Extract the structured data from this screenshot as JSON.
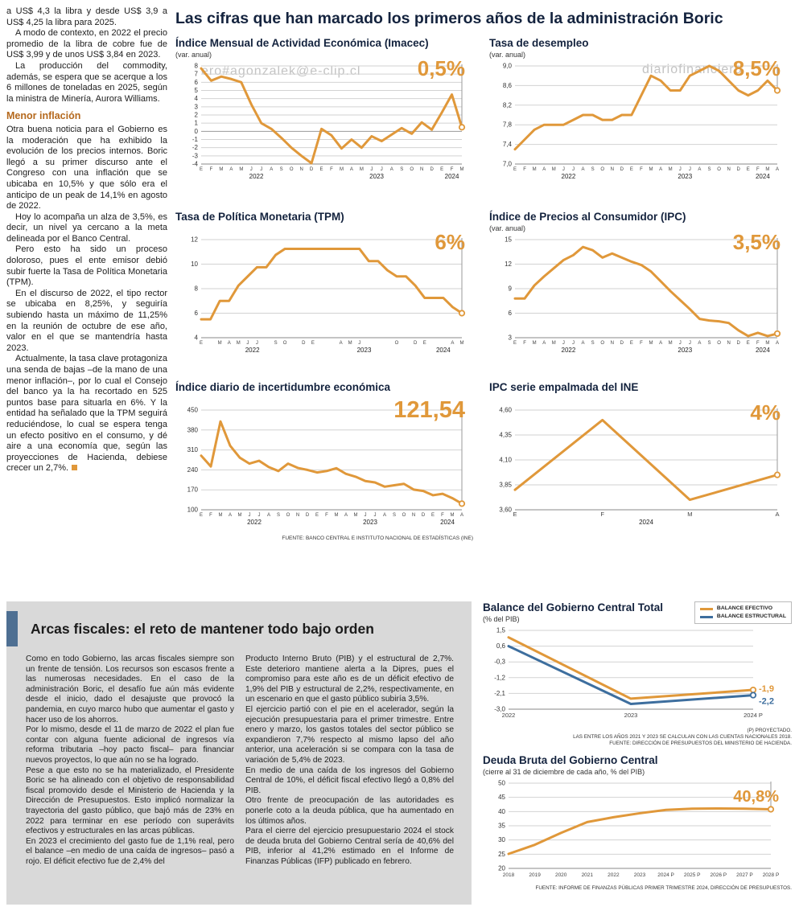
{
  "page": {
    "headline": "Las cifras que han marcado los primeros años de la administración Boric",
    "watermark_top": "ero#agonzalek@e-clip.cl",
    "watermark_brand": "diariofinanciero",
    "watermark_bottom": "ero#agonzalek@e-clip.cl"
  },
  "colors": {
    "accent_orange": "#e0983a",
    "accent_blue": "#3d6e9e",
    "accent_bar": "#4e6f92"
  },
  "left_article": {
    "paragraphs": [
      "a US$ 4,3 la libra y desde US$ 3,9 a US$ 4,25 la libra para 2025.",
      "A modo de contexto, en 2022 el precio promedio de la libra de cobre fue de US$ 3,99 y de unos US$ 3,84 en 2023.",
      "La producción del commodity, además, se espera que se acerque a los 6 millones de toneladas en 2025, según la ministra de Minería, Aurora Williams."
    ],
    "subhead": "Menor inflación",
    "paragraphs2": [
      "Otra buena noticia para el Gobierno es la moderación que ha exhibido la evolución de los precios internos. Boric llegó a su primer discurso ante el Congreso con una inflación que se ubicaba en 10,5% y que sólo era el anticipo de un peak de 14,1% en agosto de 2022.",
      "Hoy lo acompaña un alza de 3,5%, es decir, un nivel ya cercano a la meta delineada por el Banco Central.",
      "Pero esto ha sido un proceso doloroso, pues el ente emisor debió subir fuerte la Tasa de Política Monetaria (TPM).",
      "En el discurso de 2022, el tipo rector se ubicaba en 8,25%, y seguiría subiendo hasta un máximo de 11,25% en la reunión de octubre de ese año, valor en el que se mantendría hasta 2023.",
      "Actualmente, la tasa clave protagoniza una senda de bajas –de la mano de una menor inflación–, por lo cual el Consejo del banco ya la ha recortado en 525 puntos base para situarla en 6%. Y la entidad ha señalado que la TPM seguirá reduciéndose, lo cual se espera tenga un efecto positivo en el consumo, y dé aire a una economía que, según las proyecciones de Hacienda, debiese crecer un 2,7%."
    ]
  },
  "fiscal_section": {
    "title": "Arcas fiscales: el reto de mantener todo bajo orden",
    "col1": [
      "Como en todo Gobierno, las arcas fiscales siempre son un frente de tensión. Los recursos son escasos frente a las numerosas necesidades. En el caso de la administración Boric, el desafío fue aún más evidente desde el inicio, dado el desajuste que provocó la pandemia, en cuyo marco hubo que aumentar el gasto y hacer uso de los ahorros.",
      "Por lo mismo, desde el 11 de marzo de 2022 el plan fue contar con alguna fuente adicional de ingresos vía reforma tributaria –hoy pacto fiscal– para financiar nuevos proyectos, lo que aún no se ha logrado.",
      "Pese a que esto no se ha materializado, el Presidente Boric se ha alineado con el objetivo de responsabilidad fiscal promovido desde el Ministerio de Hacienda y la Dirección de Presupuestos. Esto implicó normalizar la trayectoria del gasto público, que bajó más de 23% en 2022 para terminar en ese período con superávits efectivos y estructurales en las arcas públicas.",
      "En 2023 el crecimiento del gasto fue de 1,1% real, pero el balance –en medio de una caída de ingresos– pasó a rojo. El déficit efectivo fue de 2,4% del"
    ],
    "col2": [
      "Producto Interno Bruto (PIB) y el estructural de 2,7%. Este deterioro mantiene alerta a la Dipres, pues el compromiso para este año es de un déficit efectivo de 1,9% del PIB y estructural de 2,2%, respectivamente, en un escenario en que el gasto público subiría 3,5%.",
      "El ejercicio partió con el pie en el acelerador, según la ejecución presupuestaria para el primer trimestre. Entre enero y marzo, los gastos totales del sector público se expandieron 7,7% respecto al mismo lapso del año anterior, una aceleración si se compara con la tasa de variación de 5,4% de 2023.",
      "En medio de una caída de los ingresos del Gobierno Central de 10%, el déficit fiscal efectivo llegó a 0,8% del PIB.",
      "Otro frente de preocupación de las autoridades es ponerle coto a la deuda pública, que ha aumentado en los últimos años.",
      "Para el cierre del ejercicio presupuestario 2024 el stock de deuda bruta del Gobierno Central sería de 40,6% del PIB, inferior al 41,2% estimado en el Informe de Finanzas Públicas (IFP) publicado en febrero."
    ]
  },
  "chart_data": [
    {
      "id": "imacec",
      "type": "line",
      "title": "Índice Mensual de Actividad Económica (Imacec)",
      "subtitle": "(var. anual)",
      "big_label": "0,5%",
      "ylim": [
        -4,
        8
      ],
      "yticks": [
        8,
        7,
        6,
        5,
        4,
        3,
        2,
        1,
        0,
        -1,
        -2,
        -3,
        -4
      ],
      "ytick_labels": [
        "8",
        "7",
        "6",
        "5",
        "4",
        "3",
        "2",
        "1",
        "0",
        "-1",
        "-2",
        "-3",
        "-4"
      ],
      "xticks": [
        "E",
        "F",
        "M",
        "A",
        "M",
        "J",
        "J",
        "A",
        "S",
        "O",
        "N",
        "D",
        "E",
        "F",
        "M",
        "A",
        "M",
        "J",
        "J",
        "A",
        "S",
        "O",
        "N",
        "D",
        "E",
        "F",
        "M"
      ],
      "year_labels": [
        {
          "label": "2022",
          "start": 0,
          "end": 11
        },
        {
          "label": "2023",
          "start": 12,
          "end": 23
        },
        {
          "label": "2024",
          "start": 24,
          "end": 26
        }
      ],
      "series": [
        {
          "name": "Imacec",
          "color": "#e0983a",
          "values": [
            7.7,
            6.2,
            6.7,
            6.4,
            6.0,
            3.3,
            1.0,
            0.3,
            -0.8,
            -2.0,
            -3.0,
            -3.9,
            0.3,
            -0.5,
            -2.1,
            -1.0,
            -2.0,
            -0.6,
            -1.2,
            -0.4,
            0.4,
            -0.3,
            1.1,
            0.2,
            2.3,
            4.5,
            0.5
          ]
        }
      ]
    },
    {
      "id": "desempleo",
      "type": "line",
      "title": "Tasa de desempleo",
      "subtitle": "(var. anual)",
      "big_label": "8,5%",
      "ylim": [
        7.0,
        9.0
      ],
      "yticks": [
        9.0,
        8.6,
        8.2,
        7.8,
        7.4,
        7.0
      ],
      "ytick_labels": [
        "9,0",
        "8,6",
        "8,2",
        "7,8",
        "7,4",
        "7,0"
      ],
      "xticks": [
        "E",
        "F",
        "M",
        "A",
        "M",
        "J",
        "J",
        "A",
        "S",
        "O",
        "N",
        "D",
        "E",
        "F",
        "M",
        "A",
        "M",
        "J",
        "J",
        "A",
        "S",
        "O",
        "N",
        "D",
        "E",
        "F",
        "M",
        "A"
      ],
      "year_labels": [
        {
          "label": "2022",
          "start": 0,
          "end": 11
        },
        {
          "label": "2023",
          "start": 12,
          "end": 23
        },
        {
          "label": "2024",
          "start": 24,
          "end": 27
        }
      ],
      "series": [
        {
          "name": "Tasa de desempleo",
          "color": "#e0983a",
          "values": [
            7.3,
            7.5,
            7.7,
            7.8,
            7.8,
            7.8,
            7.9,
            8.0,
            8.0,
            7.9,
            7.9,
            8.0,
            8.0,
            8.4,
            8.8,
            8.7,
            8.5,
            8.5,
            8.8,
            8.9,
            9.0,
            8.9,
            8.7,
            8.5,
            8.4,
            8.5,
            8.7,
            8.5
          ]
        }
      ]
    },
    {
      "id": "tpm",
      "type": "line",
      "title": "Tasa de Política Monetaria (TPM)",
      "subtitle": "",
      "big_label": "6%",
      "ylim": [
        4,
        12
      ],
      "yticks": [
        12,
        10,
        8,
        6,
        4
      ],
      "ytick_labels": [
        "12",
        "10",
        "8",
        "6",
        "4"
      ],
      "xticks": [
        "E",
        "",
        "M",
        "A",
        "M",
        "J",
        "J",
        "",
        "S",
        "O",
        "",
        "D",
        "E",
        "",
        "",
        "A",
        "M",
        "J",
        "",
        "",
        "",
        "O",
        "",
        "D",
        "E",
        "",
        "",
        "A",
        "M"
      ],
      "year_labels": [
        {
          "label": "2022",
          "start": 0,
          "end": 11
        },
        {
          "label": "2023",
          "start": 12,
          "end": 23
        },
        {
          "label": "2024",
          "start": 24,
          "end": 28
        }
      ],
      "series": [
        {
          "name": "TPM",
          "color": "#e0983a",
          "values": [
            5.5,
            5.5,
            7.0,
            7.0,
            8.25,
            9.0,
            9.75,
            9.75,
            10.75,
            11.25,
            11.25,
            11.25,
            11.25,
            11.25,
            11.25,
            11.25,
            11.25,
            11.25,
            10.25,
            10.25,
            9.5,
            9.0,
            9.0,
            8.25,
            7.25,
            7.25,
            7.25,
            6.5,
            6.0
          ]
        }
      ]
    },
    {
      "id": "ipc",
      "type": "line",
      "title": "Índice de Precios al Consumidor (IPC)",
      "subtitle": "(var. anual)",
      "big_label": "3,5%",
      "ylim": [
        3,
        15
      ],
      "yticks": [
        15,
        12,
        9,
        6,
        3
      ],
      "ytick_labels": [
        "15",
        "12",
        "9",
        "6",
        "3"
      ],
      "xticks": [
        "E",
        "F",
        "M",
        "A",
        "M",
        "J",
        "J",
        "A",
        "S",
        "O",
        "N",
        "D",
        "E",
        "F",
        "M",
        "A",
        "M",
        "J",
        "J",
        "A",
        "S",
        "O",
        "N",
        "D",
        "E",
        "F",
        "M",
        "A"
      ],
      "year_labels": [
        {
          "label": "2022",
          "start": 0,
          "end": 11
        },
        {
          "label": "2023",
          "start": 12,
          "end": 23
        },
        {
          "label": "2024",
          "start": 24,
          "end": 27
        }
      ],
      "series": [
        {
          "name": "IPC",
          "color": "#e0983a",
          "values": [
            7.8,
            7.8,
            9.4,
            10.5,
            11.5,
            12.5,
            13.1,
            14.1,
            13.7,
            12.8,
            13.3,
            12.8,
            12.3,
            11.9,
            11.1,
            9.9,
            8.7,
            7.6,
            6.5,
            5.3,
            5.1,
            5.0,
            4.8,
            3.9,
            3.2,
            3.6,
            3.2,
            3.5
          ]
        }
      ]
    },
    {
      "id": "incertidumbre",
      "type": "line",
      "title": "Índice diario de incertidumbre económica",
      "subtitle": "",
      "big_label": "121,54",
      "ylim": [
        100,
        450
      ],
      "yticks": [
        450,
        380,
        310,
        240,
        170,
        100
      ],
      "ytick_labels": [
        "450",
        "380",
        "310",
        "240",
        "170",
        "100"
      ],
      "xticks": [
        "E",
        "F",
        "M",
        "A",
        "M",
        "J",
        "J",
        "A",
        "S",
        "O",
        "N",
        "D",
        "E",
        "F",
        "M",
        "A",
        "M",
        "J",
        "J",
        "A",
        "S",
        "O",
        "N",
        "D",
        "E",
        "F",
        "M",
        "A"
      ],
      "year_labels": [
        {
          "label": "2022",
          "start": 0,
          "end": 11
        },
        {
          "label": "2023",
          "start": 12,
          "end": 23
        },
        {
          "label": "2024",
          "start": 24,
          "end": 27
        }
      ],
      "series": [
        {
          "name": "Incertidumbre económica",
          "color": "#e0983a",
          "values": [
            290,
            252,
            410,
            325,
            283,
            262,
            272,
            250,
            236,
            262,
            247,
            240,
            231,
            236,
            246,
            226,
            216,
            201,
            196,
            181,
            186,
            191,
            171,
            166,
            151,
            156,
            141,
            121.54
          ]
        }
      ],
      "source": "FUENTE: BANCO CENTRAL E INSTITUTO NACIONAL DE ESTADÍSTICAS (INE)"
    },
    {
      "id": "ipc_ine",
      "type": "line",
      "title": "IPC serie empalmada del INE",
      "subtitle": "",
      "big_label": "4%",
      "ylim": [
        3.6,
        4.6
      ],
      "yticks": [
        4.6,
        4.35,
        4.1,
        3.85,
        3.6
      ],
      "ytick_labels": [
        "4,60",
        "4,35",
        "4,10",
        "3,85",
        "3,60"
      ],
      "xticks": [
        "E",
        "F",
        "M",
        "A"
      ],
      "year_labels": [
        {
          "label": "2024",
          "start": 0,
          "end": 3
        }
      ],
      "series": [
        {
          "name": "IPC serie empalmada",
          "color": "#e0983a",
          "values": [
            3.8,
            4.5,
            3.7,
            3.95
          ]
        }
      ]
    },
    {
      "id": "balance",
      "type": "line",
      "title": "Balance del Gobierno Central Total",
      "subtitle": "(% del PIB)",
      "ylim": [
        -3.0,
        1.5
      ],
      "yticks": [
        1.5,
        0.6,
        -0.3,
        -1.2,
        -2.1,
        -3.0
      ],
      "ytick_labels": [
        "1,5",
        "0,6",
        "-0,3",
        "-1,2",
        "-2,1",
        "-3,0"
      ],
      "xticks": [
        "2022",
        "2023",
        "2024 P"
      ],
      "series": [
        {
          "name": "BALANCE EFECTIVO",
          "color": "#e0983a",
          "values": [
            1.1,
            -2.4,
            -1.9
          ],
          "end_label": "-1,9",
          "dy": -1
        },
        {
          "name": "BALANCE ESTRUCTURAL",
          "color": "#3d6e9e",
          "values": [
            0.6,
            -2.7,
            -2.2
          ],
          "end_label": "-2,2",
          "dy": 8
        }
      ],
      "footnotes": [
        "(P) PROYECTADO.",
        "LAS ENTRE LOS AÑOS 2021 Y 2023 SE CALCULAN CON LAS CUENTAS NACIONALES 2018.",
        "FUENTE: DIRECCIÓN DE PRESUPUESTOS DEL MINISTERIO DE HACIENDA."
      ],
      "legend_position": "top-right"
    },
    {
      "id": "deuda",
      "type": "line",
      "title": "Deuda Bruta del Gobierno Central",
      "subtitle": "(cierre al 31 de diciembre de cada año, % del PIB)",
      "big_label": "40,8%",
      "ylim": [
        20,
        50
      ],
      "yticks": [
        50,
        45,
        40,
        35,
        30,
        25,
        20
      ],
      "ytick_labels": [
        "50",
        "45",
        "40",
        "35",
        "30",
        "25",
        "20"
      ],
      "xticks": [
        "2018",
        "2019",
        "2020",
        "2021",
        "2022",
        "2023",
        "2024 P",
        "2025 P",
        "2026 P",
        "2027 P",
        "2028 P"
      ],
      "series": [
        {
          "name": "Deuda bruta",
          "color": "#e0983a",
          "values": [
            25.1,
            28.3,
            32.5,
            36.3,
            38.0,
            39.4,
            40.6,
            41.0,
            41.1,
            41.0,
            40.8
          ]
        }
      ],
      "source": "FUENTE: INFORME DE FINANZAS PÚBLICAS PRIMER TRIMESTRE 2024, DIRECCIÓN DE PRESUPUESTOS."
    }
  ]
}
